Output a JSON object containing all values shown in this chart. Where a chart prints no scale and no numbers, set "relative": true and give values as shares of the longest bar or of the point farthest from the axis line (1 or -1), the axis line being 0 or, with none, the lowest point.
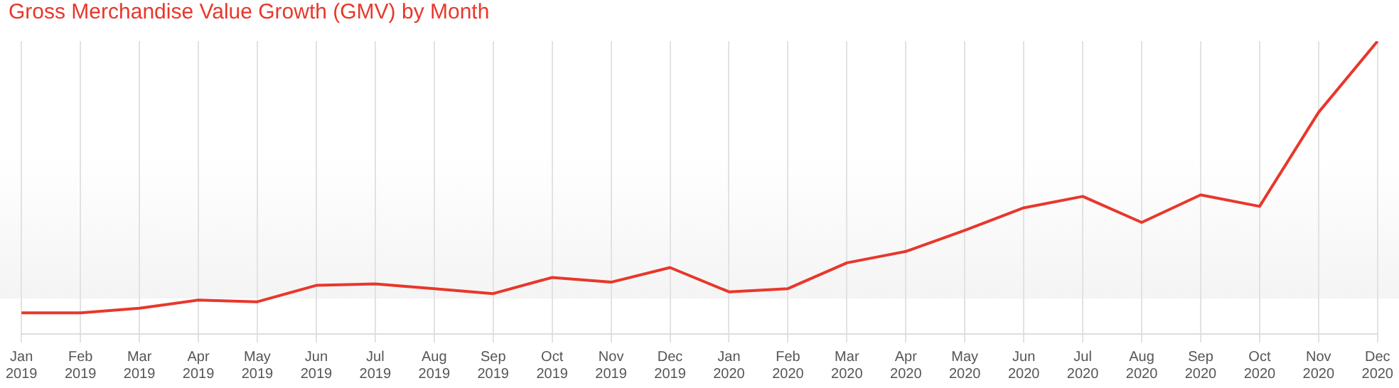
{
  "chart_data": {
    "type": "line",
    "title": "Gross Merchandise Value Growth (GMV) by Month",
    "relative": true,
    "categories": [
      "Jan 2019",
      "Feb 2019",
      "Mar 2019",
      "Apr 2019",
      "May 2019",
      "Jun 2019",
      "Jul 2019",
      "Aug 2019",
      "Sep 2019",
      "Oct 2019",
      "Nov 2019",
      "Dec 2019",
      "Jan 2020",
      "Feb 2020",
      "Mar 2020",
      "Apr 2020",
      "May 2020",
      "Jun 2020",
      "Jul 2020",
      "Aug 2020",
      "Sep 2020",
      "Oct 2020",
      "Nov 2020",
      "Dec 2020"
    ],
    "series": [
      {
        "color": "#e8372b",
        "values": [
          0.072,
          0.072,
          0.088,
          0.116,
          0.11,
          0.166,
          0.171,
          0.155,
          0.138,
          0.193,
          0.177,
          0.227,
          0.144,
          0.155,
          0.243,
          0.282,
          0.354,
          0.431,
          0.47,
          0.381,
          0.475,
          0.436,
          0.757,
          1
        ]
      }
    ],
    "grid": "x",
    "legend": false,
    "marker": "none",
    "line_style": "solid"
  }
}
